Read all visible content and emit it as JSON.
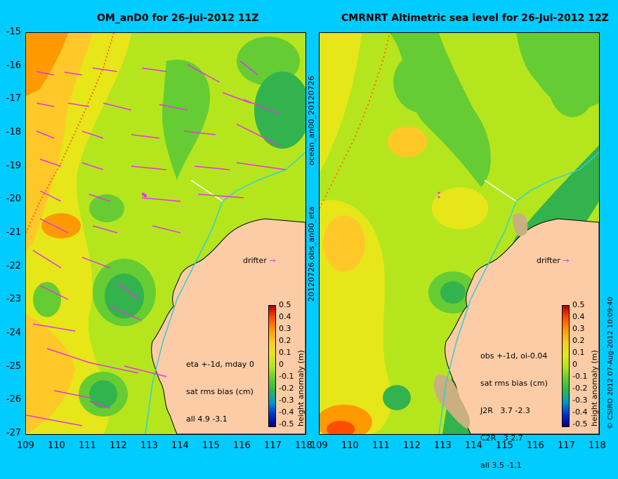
{
  "left_panel": {
    "title": "OM_anD0 for 26-Jul-2012 11Z",
    "info_lines": [
      "eta +-1d, mday 0",
      "sat rms bias (cm)",
      "all 4.9 -3.1"
    ],
    "drifter_label": "drifter"
  },
  "right_panel": {
    "title": "CMRNRT Altimetric sea level  for 26-Jul-2012 12Z",
    "info_lines": [
      "obs +-1d, oi-0.04",
      "sat rms bias (cm)",
      "J2R   3.7 -2.3",
      "C2R   3 2.7",
      "all 3.5 -1.1"
    ],
    "drifter_label": "drifter"
  },
  "axes": {
    "lat_ticks": [
      "-15",
      "-16",
      "-17",
      "-18",
      "-19",
      "-20",
      "-21",
      "-22",
      "-23",
      "-24",
      "-25",
      "-26",
      "-27"
    ],
    "lon_ticks": [
      "109",
      "110",
      "111",
      "112",
      "113",
      "114",
      "115",
      "116",
      "117",
      "118"
    ]
  },
  "colorbar": {
    "label": "height anomaly (m)",
    "ticks": [
      "0.5",
      "0.4",
      "0.3",
      "0.2",
      "0.1",
      "0",
      "-0.1",
      "-0.2",
      "-0.3",
      "-0.4",
      "-0.5"
    ]
  },
  "side_labels": {
    "mid_top": "ocean_an00_20120726",
    "mid_bottom": "20120726.obs_an00_eta",
    "right_edge": "© CSIRO 2012   07-Aug-2012 10:09:40"
  },
  "colors": {
    "background": "#00ccff",
    "land": "#fccca6",
    "vector": "#e633e6",
    "track": "#30d0d0"
  },
  "map": {
    "lon_range": [
      109,
      118
    ],
    "lat_range": [
      -27,
      -15
    ]
  }
}
